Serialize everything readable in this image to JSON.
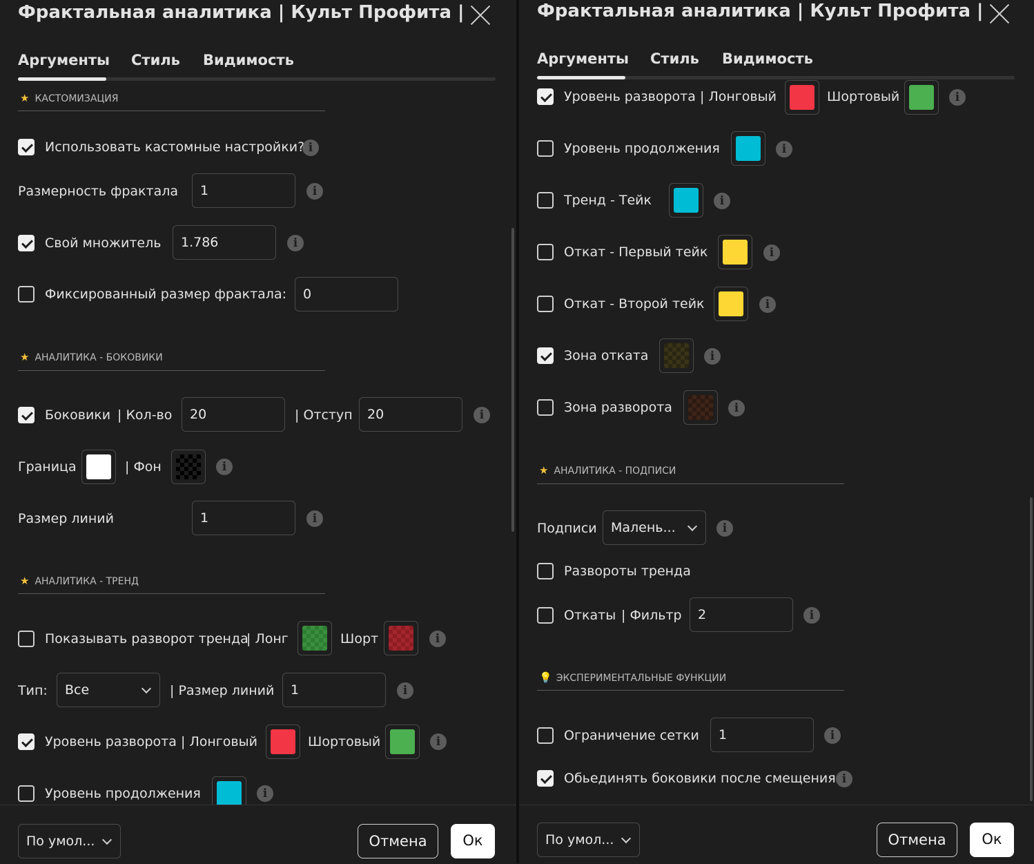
{
  "dialog": {
    "title": "Фрактальная аналитика  |  Культ Профита  |",
    "tabs": [
      "Аргументы",
      "Стиль",
      "Видимость"
    ],
    "info_glyph": "i",
    "sections": {
      "customization": "КАСТОМИЗАЦИЯ",
      "sideways": "АНАЛИТИКА - БОКОВИКИ",
      "trend": "АНАЛИТИКА - ТРЕНД",
      "labels": "АНАЛИТИКА - ПОДПИСИ",
      "experimental": "ЭКСПЕРИМЕНТАЛЬНЫЕ ФУНКЦИИ"
    },
    "footer": {
      "defaults": "По умол...",
      "cancel": "Отмена",
      "ok": "Ок"
    }
  },
  "settings": {
    "use_custom": {
      "label": "Использовать кастомные настройки?",
      "checked": true
    },
    "fractal_dim": {
      "label": "Размерность фрактала",
      "value": "1"
    },
    "own_multiplier": {
      "label": "Свой множитель",
      "checked": true,
      "value": "1.786"
    },
    "fixed_size": {
      "label": "Фиксированный размер фрактала:",
      "checked": false,
      "value": "0"
    },
    "sideways": {
      "label": "Боковики",
      "count_label": "|  Кол-во",
      "count": "20",
      "offset_label": "|  Отступ",
      "offset": "20",
      "checked": true
    },
    "border_bg": {
      "border_label": "Граница",
      "bg_label": "|  Фон",
      "border_color": "#ffffff",
      "bg_color": "#111111"
    },
    "line_size_side": {
      "label": "Размер линий",
      "value": "1"
    },
    "show_reversal": {
      "label": "Показывать разворот тренда",
      "long_label": "|  Лонг",
      "short_label": "Шорт",
      "checked": false,
      "long_color": "#2e7d32",
      "short_color": "#8e1c22"
    },
    "type_row": {
      "label": "Тип:",
      "value": "Все",
      "line_label": "|  Размер линий",
      "line_value": "1"
    },
    "reversal_level": {
      "label": "Уровень разворота",
      "long_label": "|  Лонговый",
      "short_label": "Шортовый",
      "checked": true,
      "long_color": "#f23645",
      "short_color": "#4caf50"
    },
    "continuation": {
      "label": "Уровень продолжения",
      "checked": false,
      "color": "#00bcd4"
    },
    "trend_take": {
      "label": "Тренд - Тейк",
      "checked": false,
      "color": "#00bcd4"
    },
    "pullback_first": {
      "label": "Откат - Первый тейк",
      "checked": false,
      "color": "#fdd835"
    },
    "pullback_second": {
      "label": "Откат - Второй тейк",
      "checked": false,
      "color": "#fdd835"
    },
    "pullback_zone": {
      "label": "Зона отката",
      "checked": true,
      "color": "#3a3418"
    },
    "reversal_zone": {
      "label": "Зона разворота",
      "checked": false,
      "color": "#3e2419"
    },
    "captions": {
      "label": "Подписи",
      "value": "Малень..."
    },
    "trend_reversals": {
      "label": "Развороты тренда",
      "checked": false
    },
    "pullbacks": {
      "label": "Откаты",
      "filter_label": "|  Фильтр",
      "value": "2",
      "checked": false
    },
    "grid_limit": {
      "label": "Ограничение сетки",
      "value": "1",
      "checked": false
    },
    "merge_sideways": {
      "label": "Обьединять боковики после смещения",
      "checked": true
    }
  }
}
